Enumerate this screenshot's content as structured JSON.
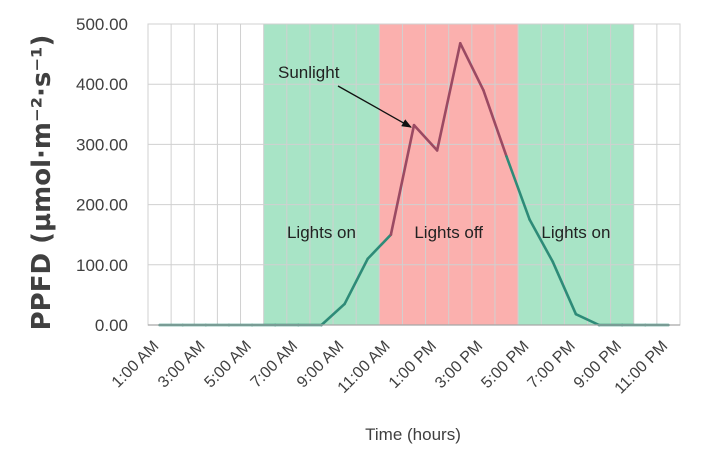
{
  "chart_data": {
    "type": "line",
    "title": "",
    "ylabel": "PPFD (µmol·m⁻²·s⁻¹)",
    "xlabel": "Time (hours)",
    "ylim": [
      0,
      500
    ],
    "xlim": [
      0.5,
      23.5
    ],
    "yticks": [
      "0.00",
      "100.00",
      "200.00",
      "300.00",
      "400.00",
      "500.00"
    ],
    "xtick_labels": [
      "1:00 AM",
      "3:00 AM",
      "5:00 AM",
      "7:00 AM",
      "9:00 AM",
      "11:00 AM",
      "1:00 PM",
      "3:00 PM",
      "5:00 PM",
      "7:00 PM",
      "9:00 PM",
      "11:00 PM"
    ],
    "xtick_hours": [
      1,
      3,
      5,
      7,
      9,
      11,
      13,
      15,
      17,
      19,
      21,
      23
    ],
    "grid": true,
    "series": [
      {
        "name": "Sunlight",
        "x": [
          1,
          2,
          3,
          4,
          5,
          6,
          7,
          8,
          9,
          10,
          11,
          12,
          13,
          14,
          15,
          16,
          17,
          18,
          19,
          20,
          21,
          22,
          23
        ],
        "values": [
          0,
          0,
          0,
          0,
          0,
          0,
          0,
          0,
          35,
          110,
          150,
          332,
          290,
          468,
          390,
          280,
          175,
          105,
          18,
          0,
          0,
          0,
          0
        ],
        "color_in_lights_on": "#2e8b78",
        "color_in_lights_off": "#9b4a63"
      }
    ],
    "regions": [
      {
        "label": "Lights on",
        "start": 5.5,
        "end": 10.5,
        "color": "#a8e4c6"
      },
      {
        "label": "Lights off",
        "start": 10.5,
        "end": 16.5,
        "color": "#fbb0ae"
      },
      {
        "label": "Lights on",
        "start": 16.5,
        "end": 21.5,
        "color": "#a8e4c6"
      }
    ],
    "annotation": {
      "text": "Sunlight",
      "points_to_x": 12,
      "points_to_y": 332
    }
  }
}
